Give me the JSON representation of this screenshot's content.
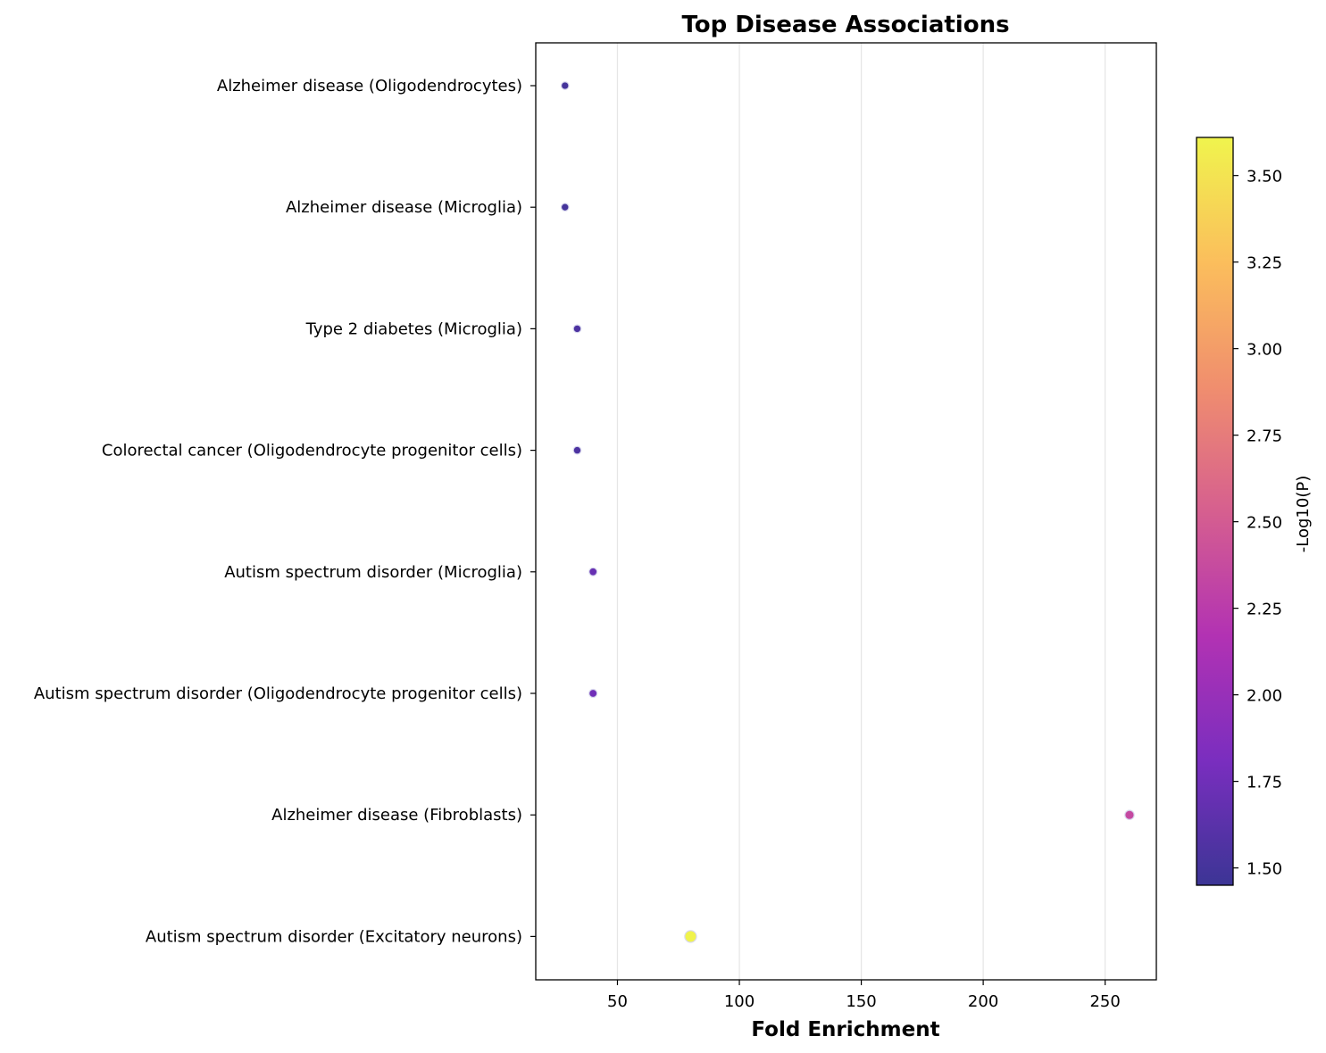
{
  "chart_data": {
    "type": "scatter",
    "title": "Top Disease Associations",
    "xlabel": "Fold Enrichment",
    "ylabel": "",
    "xlim": [
      16.5,
      271
    ],
    "xticks": [
      50,
      100,
      150,
      200,
      250
    ],
    "x_grid": true,
    "categories": [
      "Alzheimer disease (Oligodendrocytes)",
      "Alzheimer disease (Microglia)",
      "Type 2 diabetes (Microglia)",
      "Colorectal cancer (Oligodendrocyte progenitor cells)",
      "Autism spectrum disorder (Microglia)",
      "Autism spectrum disorder (Oligodendrocyte progenitor cells)",
      "Alzheimer disease (Fibroblasts)",
      "Autism spectrum disorder (Excitatory neurons)"
    ],
    "points": [
      {
        "category": "Alzheimer disease (Oligodendrocytes)",
        "x": 28.5,
        "neg_log10_p": 1.5
      },
      {
        "category": "Alzheimer disease (Microglia)",
        "x": 28.5,
        "neg_log10_p": 1.5
      },
      {
        "category": "Type 2 diabetes (Microglia)",
        "x": 33.5,
        "neg_log10_p": 1.55
      },
      {
        "category": "Colorectal cancer (Oligodendrocyte progenitor cells)",
        "x": 33.5,
        "neg_log10_p": 1.55
      },
      {
        "category": "Autism spectrum disorder (Microglia)",
        "x": 40,
        "neg_log10_p": 1.7
      },
      {
        "category": "Autism spectrum disorder (Oligodendrocyte progenitor cells)",
        "x": 40,
        "neg_log10_p": 1.75
      },
      {
        "category": "Alzheimer disease (Fibroblasts)",
        "x": 260,
        "neg_log10_p": 2.35
      },
      {
        "category": "Autism spectrum disorder (Excitatory neurons)",
        "x": 80,
        "neg_log10_p": 3.6
      }
    ],
    "colorbar": {
      "label": "-Log10(P)",
      "colormap": "plasma",
      "range": [
        1.45,
        3.61
      ],
      "ticks": [
        1.5,
        1.75,
        2.0,
        2.25,
        2.5,
        2.75,
        3.0,
        3.25,
        3.5
      ],
      "tick_labels": [
        "1.50",
        "1.75",
        "2.00",
        "2.25",
        "2.50",
        "2.75",
        "3.00",
        "3.25",
        "3.50"
      ]
    },
    "colors": {
      "plasma_stops": [
        "#3c3595",
        "#7a2ebf",
        "#b232b3",
        "#d65f8f",
        "#f08e6e",
        "#fbbe5c",
        "#f0f44d"
      ],
      "grid": "#e6e6e6",
      "axis": "#000000",
      "marker_edge": "#d9d9ee"
    }
  }
}
